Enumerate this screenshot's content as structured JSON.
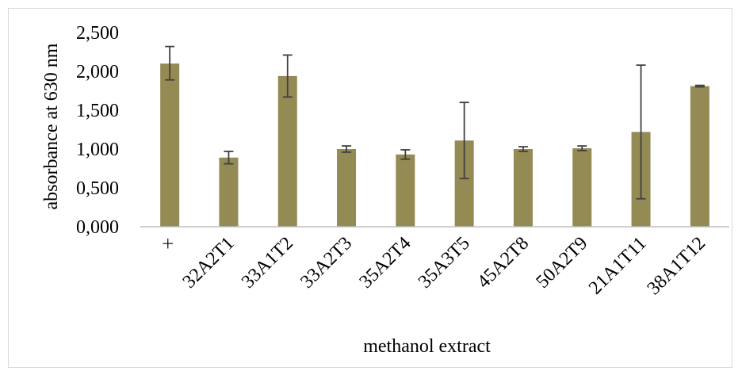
{
  "chart_data": {
    "type": "bar",
    "title": "",
    "xlabel": "methanol extract",
    "ylabel": "absorbance at 630 nm",
    "ylim": [
      0,
      2.5
    ],
    "yticks": [
      0,
      0.5,
      1,
      1.5,
      2,
      2.5
    ],
    "ytick_labels": [
      "0,000",
      "0,500",
      "1,000",
      "1,500",
      "2,000",
      "2,500"
    ],
    "grid": false,
    "legend": "none",
    "categories": [
      "×",
      "32A2T1",
      "33A1T2",
      "33A2T3",
      "35A2T4",
      "35A3T5",
      "45A2T8",
      "50A2T9",
      "21A1T11",
      "38A1T12"
    ],
    "values": [
      2.1,
      0.89,
      1.94,
      1.0,
      0.93,
      1.11,
      1.0,
      1.01,
      1.22,
      1.81
    ],
    "error_low": [
      0.21,
      0.08,
      0.27,
      0.04,
      0.06,
      0.49,
      0.03,
      0.03,
      0.86,
      0.01
    ],
    "error_high": [
      0.22,
      0.08,
      0.27,
      0.04,
      0.06,
      0.49,
      0.03,
      0.03,
      0.86,
      0.01
    ],
    "colors": {
      "bar": "#948A54",
      "error_bar": "#404040",
      "axis": "#bfbfbf"
    }
  }
}
